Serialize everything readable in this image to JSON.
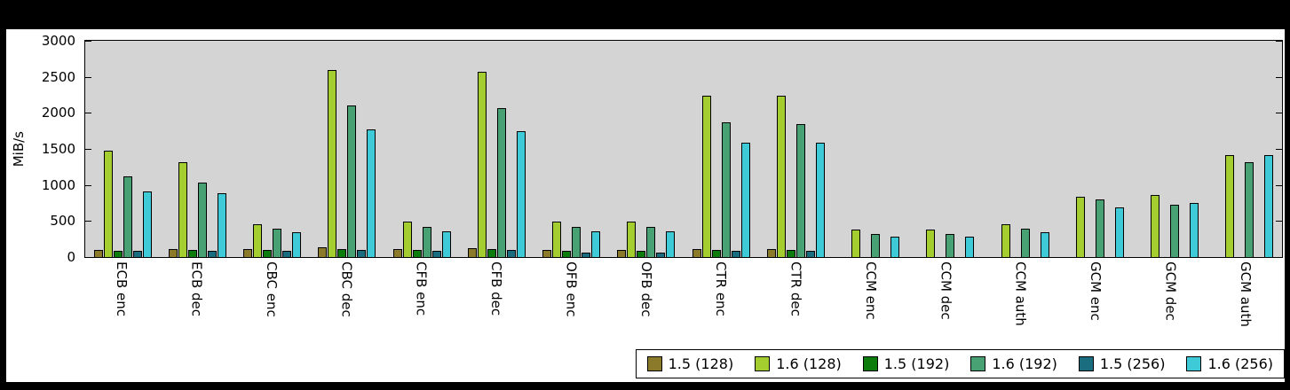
{
  "chart_data": {
    "type": "bar",
    "title": "",
    "xlabel": "",
    "ylabel": "MiB/s",
    "ylim": [
      0,
      3000
    ],
    "yticks": [
      0,
      500,
      1000,
      1500,
      2000,
      2500,
      3000
    ],
    "grid": false,
    "legend_position": "bottom-right",
    "plot_bg_color": "#d4d4d4",
    "page_bg_color": "#000000",
    "panel_bg_color": "#ffffff",
    "categories": [
      "ECB enc",
      "ECB dec",
      "CBC enc",
      "CBC dec",
      "CFB enc",
      "CFB dec",
      "OFB enc",
      "OFB dec",
      "CTR enc",
      "CTR dec",
      "CCM enc",
      "CCM dec",
      "CCM auth",
      "GCM enc",
      "GCM dec",
      "GCM auth"
    ],
    "series": [
      {
        "name": "1.5 (128)",
        "color": "#8a7a2a",
        "values": [
          100,
          105,
          110,
          130,
          110,
          120,
          100,
          100,
          110,
          110,
          0,
          0,
          0,
          0,
          0,
          0
        ]
      },
      {
        "name": "1.6 (128)",
        "color": "#a4ce30",
        "values": [
          1470,
          1310,
          460,
          2600,
          490,
          2570,
          490,
          490,
          2240,
          2240,
          380,
          380,
          460,
          840,
          860,
          1410
        ]
      },
      {
        "name": "1.5 (192)",
        "color": "#0c7c0c",
        "values": [
          90,
          95,
          100,
          110,
          100,
          105,
          85,
          85,
          100,
          100,
          0,
          0,
          0,
          0,
          0,
          0
        ]
      },
      {
        "name": "1.6 (192)",
        "color": "#47a173",
        "values": [
          1120,
          1030,
          390,
          2100,
          420,
          2060,
          420,
          420,
          1870,
          1840,
          320,
          320,
          395,
          795,
          730,
          1315
        ]
      },
      {
        "name": "1.5 (256)",
        "color": "#1a6d7f",
        "values": [
          80,
          85,
          90,
          95,
          90,
          95,
          65,
          65,
          90,
          90,
          0,
          0,
          0,
          0,
          0,
          0
        ]
      },
      {
        "name": "1.6 (256)",
        "color": "#3fcad7",
        "values": [
          905,
          885,
          340,
          1770,
          360,
          1745,
          360,
          360,
          1590,
          1590,
          285,
          285,
          345,
          690,
          745,
          1410
        ]
      }
    ]
  }
}
